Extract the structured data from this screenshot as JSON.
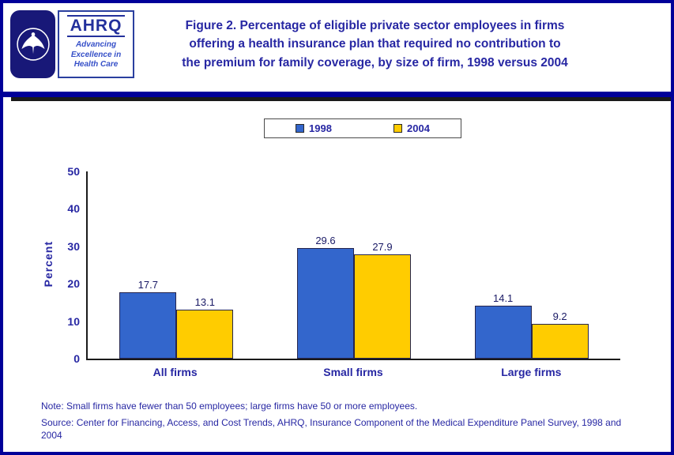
{
  "palette": {
    "navy_text": "#2727A3",
    "page_border": "#000099",
    "divider_bar": "#000099",
    "divider_shadow": "#1A1A1A"
  },
  "logos": {
    "hhs": {
      "name": "U.S. Department of Health and Human Services seal"
    },
    "ahrq": {
      "acronym": "AHRQ",
      "tagline_lines": [
        "Advancing",
        "Excellence in",
        "Health Care"
      ]
    }
  },
  "header": {
    "title_lines": [
      "Figure 2. Percentage of eligible private sector employees in firms",
      "offering a health insurance plan that required no contribution to",
      "the premium for family coverage, by size of firm, 1998 versus 2004"
    ]
  },
  "chart_data": {
    "type": "bar",
    "categories": [
      "All firms",
      "Small firms",
      "Large firms"
    ],
    "series": [
      {
        "name": "1998",
        "color": "#3366CC",
        "values": [
          17.7,
          29.6,
          14.1
        ]
      },
      {
        "name": "2004",
        "color": "#FFCC00",
        "values": [
          13.1,
          27.9,
          9.2
        ]
      }
    ],
    "title": "",
    "xlabel": "",
    "ylabel": "Percent",
    "ylim": [
      0,
      50
    ],
    "yticks": [
      0,
      10,
      20,
      30,
      40,
      50
    ],
    "grid": false,
    "legend_position": "top-center",
    "value_labels": true
  },
  "footer": {
    "note": "Note: Small firms have fewer than 50 employees; large firms have 50 or more employees.",
    "source": "Source: Center for Financing, Access, and Cost Trends, AHRQ, Insurance Component of the Medical Expenditure Panel Survey, 1998 and 2004"
  }
}
